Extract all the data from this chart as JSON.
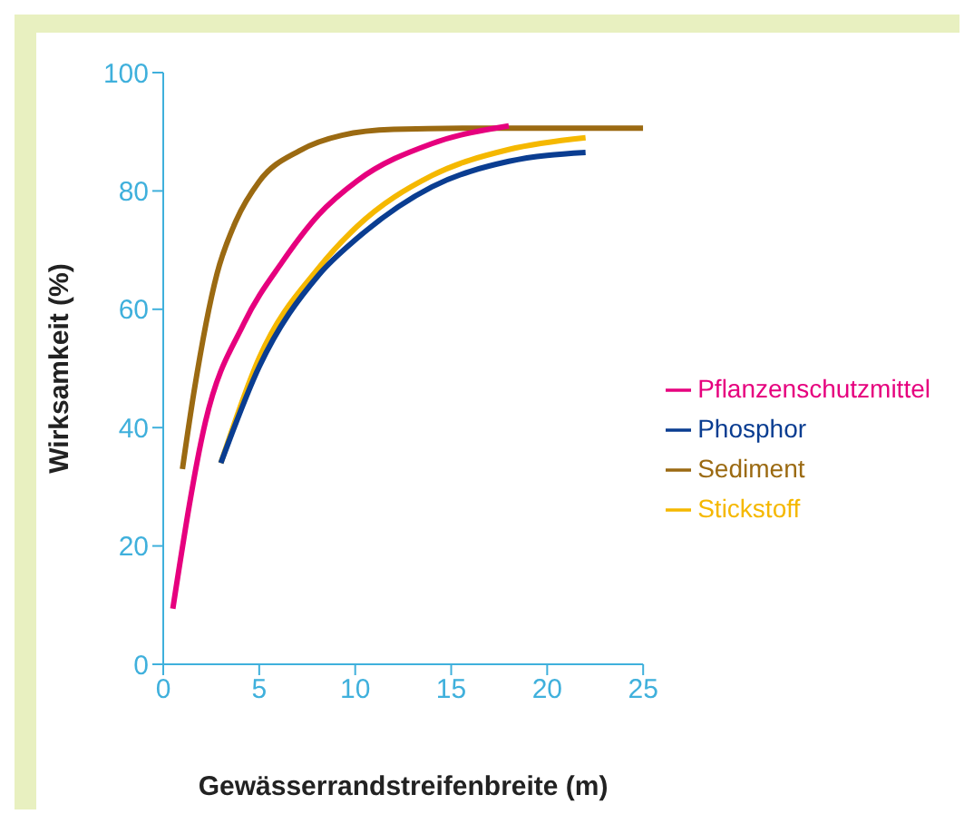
{
  "chart_data": {
    "type": "line",
    "xlabel": "Gewässerrandstreifenbreite (m)",
    "ylabel": "Wirksamkeit (%)",
    "xlim": [
      0,
      25
    ],
    "xticks": [
      0,
      5,
      10,
      15,
      20,
      25
    ],
    "ylim": [
      0,
      100
    ],
    "yticks": [
      0,
      20,
      40,
      60,
      80,
      100
    ],
    "grid": false,
    "legend": "right",
    "marker": "none",
    "line_style": "solid",
    "series": [
      {
        "name": "Sediment",
        "color": "#9b6a12",
        "x": [
          1,
          1.6,
          2.8,
          3.8,
          5,
          7.1,
          9.3,
          12,
          16,
          20,
          25
        ],
        "values": [
          33,
          46,
          66,
          75,
          81.6,
          86.8,
          89.4,
          90.4,
          90.6,
          90.6,
          90.6
        ]
      },
      {
        "name": "Stickstoff",
        "color": "#f5b800",
        "x": [
          3,
          5,
          8.1,
          10.1,
          14,
          18,
          22
        ],
        "values": [
          34,
          51.8,
          67,
          74,
          82.6,
          87,
          89
        ]
      },
      {
        "name": "Pflanzenschutzmittel",
        "color": "#e6007e",
        "x": [
          0.5,
          2.2,
          4.2,
          6.2,
          8.1,
          10.1,
          14,
          18
        ],
        "values": [
          9.4,
          41,
          57.6,
          68,
          76,
          81.7,
          88,
          91
        ]
      },
      {
        "name": "Phosphor",
        "color": "#0a3d91",
        "x": [
          3,
          5,
          8.1,
          10.1,
          14,
          18,
          22
        ],
        "values": [
          34,
          50.3,
          65.8,
          72,
          80.7,
          85,
          86.5
        ]
      }
    ]
  }
}
